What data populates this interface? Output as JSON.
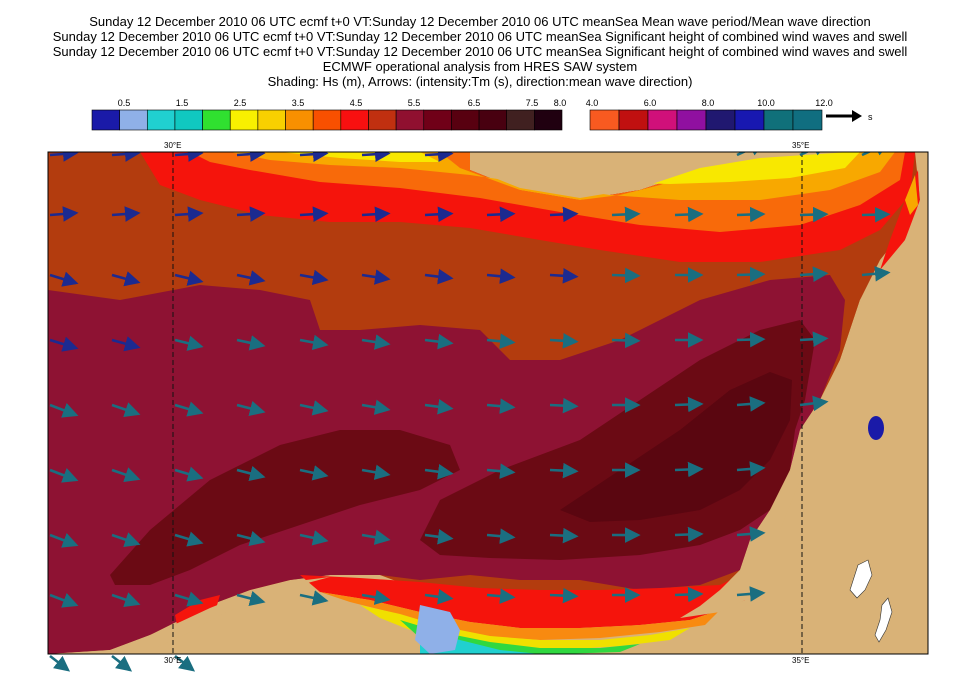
{
  "titles": [
    "Sunday 12 December 2010 06 UTC ecmf t+0 VT:Sunday 12 December 2010 06 UTC meanSea  Mean wave period/Mean wave direction",
    "Sunday 12 December 2010 06 UTC ecmf t+0 VT:Sunday 12 December 2010 06 UTC meanSea  Significant height of combined wind waves and swell",
    "Sunday 12 December 2010 06 UTC ecmf t+0 VT:Sunday 12 December 2010 06 UTC meanSea  Significant height of combined wind waves and swell",
    "ECMWF operational analysis from HRES SAW system",
    "Shading: Hs (m), Arrows: (intensity:Tm (s), direction:mean wave direction)"
  ],
  "hs_legend": {
    "labels": [
      "0.5",
      "1.5",
      "2.5",
      "3.5",
      "4.5",
      "5.5",
      "6.5",
      "7.5",
      "8.0"
    ],
    "colors": [
      "#1a1aa8",
      "#8fb0e8",
      "#20d0d0",
      "#10c8c0",
      "#30e030",
      "#f8f000",
      "#f8d000",
      "#f89000",
      "#f85000",
      "#f81010",
      "#c03010",
      "#901030",
      "#700018",
      "#580010",
      "#480010",
      "#402020",
      "#200010"
    ]
  },
  "tm_legend": {
    "labels": [
      "4.0",
      "6.0",
      "8.0",
      "10.0",
      "12.0"
    ],
    "unit": "s",
    "colors": [
      "#f85a20",
      "#c01010",
      "#d0107a",
      "#9010a0",
      "#201870",
      "#1818b0",
      "#10707a",
      "#106e80"
    ]
  },
  "lon_labels": {
    "west": "30°E",
    "east": "35°E"
  }
}
